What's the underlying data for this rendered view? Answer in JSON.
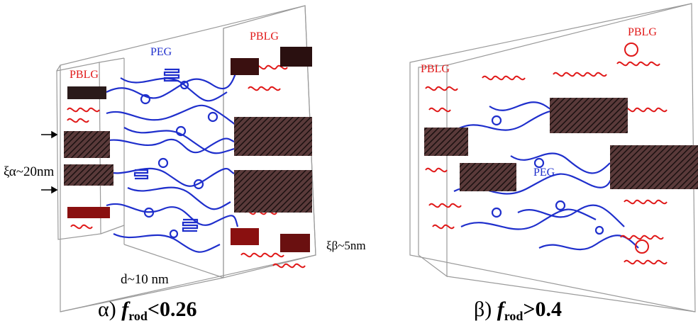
{
  "colors": {
    "peg": "#1f2fcc",
    "pblg": "#e01818",
    "rod_bundle": "#3a2a2a",
    "box_edge": "#9a9a9a"
  },
  "panel_a": {
    "labels": {
      "pblg_left": "PBLG",
      "peg": "PEG",
      "pblg_right": "PBLG",
      "xi_alpha": "ξα~20nm",
      "xi_beta": "ξβ~5nm",
      "d": "d~10 nm"
    },
    "caption": {
      "prefix": "α)",
      "symbol": "f",
      "subscript": "rod",
      "relation": "<0.26"
    }
  },
  "panel_b": {
    "labels": {
      "pblg_left": "PBLG",
      "pblg_right": "PBLG",
      "peg": "PEG"
    },
    "caption": {
      "prefix": "β)",
      "symbol": "f",
      "subscript": "rod",
      "relation": ">0.4"
    }
  }
}
